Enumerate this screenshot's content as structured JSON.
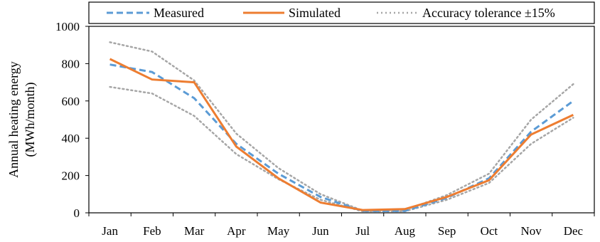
{
  "chart_data": {
    "type": "line",
    "categories": [
      "Jan",
      "Feb",
      "Mar",
      "Apr",
      "May",
      "Jun",
      "Jul",
      "Aug",
      "Sep",
      "Oct",
      "Nov",
      "Dec"
    ],
    "ylabel_line1": "Annual heating energy",
    "ylabel_line2": "(MWh/month)",
    "ylim": [
      0,
      1000
    ],
    "yticks": [
      0,
      200,
      400,
      600,
      800,
      1000
    ],
    "grid": false,
    "legend_placement": "top",
    "series": [
      {
        "name": "Measured",
        "style": "dashed",
        "color": "#5B9BD5",
        "values": [
          795,
          755,
          615,
          370,
          210,
          85,
          10,
          10,
          80,
          185,
          435,
          600
        ]
      },
      {
        "name": "Simulated",
        "style": "solid",
        "color": "#ED7D31",
        "values": [
          825,
          715,
          700,
          355,
          185,
          55,
          15,
          20,
          85,
          175,
          420,
          525
        ]
      },
      {
        "name": "Accuracy tolerance ±15%",
        "style": "dotted",
        "color": "#A6A6A6",
        "upper": [
          915,
          865,
          710,
          425,
          240,
          100,
          12,
          15,
          95,
          210,
          500,
          690
        ],
        "lower": [
          675,
          640,
          520,
          315,
          180,
          70,
          8,
          8,
          70,
          160,
          370,
          510
        ]
      }
    ]
  }
}
